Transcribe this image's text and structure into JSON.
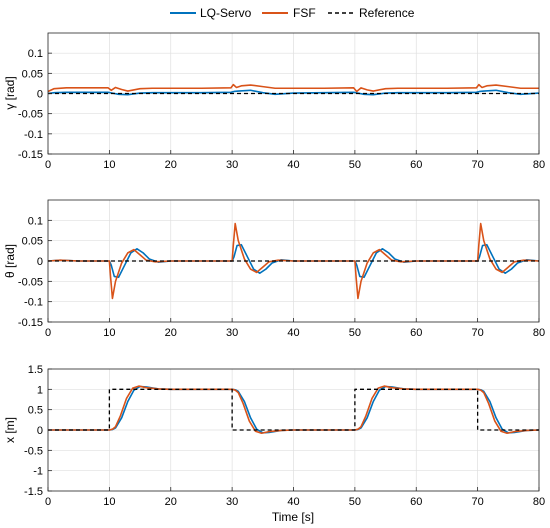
{
  "legend": {
    "entries": [
      {
        "label": "LQ-Servo",
        "color": "#0072BD",
        "dash": "solid"
      },
      {
        "label": "FSF",
        "color": "#D95319",
        "dash": "solid"
      },
      {
        "label": "Reference",
        "color": "#000000",
        "dash": "dashed"
      }
    ]
  },
  "chart_data": [
    {
      "type": "line",
      "ylabel": "γ [rad]",
      "xlabel": "",
      "xlim": [
        0,
        80
      ],
      "ylim": [
        -0.15,
        0.15
      ],
      "xticks": [
        0,
        10,
        20,
        30,
        40,
        50,
        60,
        70,
        80
      ],
      "yticks": [
        -0.15,
        -0.1,
        -0.05,
        0,
        0.05,
        0.1
      ],
      "ytick_labels": [
        "-0.15",
        "-0.1",
        "-0.05",
        "0",
        "0.05",
        "0.1"
      ],
      "grid": true,
      "series": [
        {
          "name": "LQ-Servo",
          "color": "#0072BD",
          "x": [
            0,
            1,
            3,
            6,
            9.8,
            10.5,
            11.5,
            13,
            15,
            17,
            20,
            25,
            29.8,
            30.3,
            31,
            33,
            35,
            37,
            40,
            45,
            49.8,
            50.5,
            51.5,
            53,
            55,
            57,
            60,
            65,
            69.8,
            70.3,
            71,
            73,
            75,
            77,
            80
          ],
          "y": [
            0,
            0.002,
            0.003,
            0.003,
            0.003,
            0.001,
            -0.002,
            -0.003,
            0.001,
            0.002,
            0.002,
            0.002,
            0.003,
            0.005,
            0.006,
            0.008,
            0.002,
            -0.002,
            0.001,
            0.002,
            0.003,
            0.001,
            -0.002,
            -0.003,
            0.001,
            0.002,
            0.002,
            0.002,
            0.003,
            0.005,
            0.006,
            0.008,
            0.002,
            -0.002,
            0.001
          ]
        },
        {
          "name": "FSF",
          "color": "#D95319",
          "x": [
            0,
            1,
            3,
            6,
            9.8,
            10.3,
            11,
            12,
            13,
            15,
            17,
            20,
            25,
            29.8,
            30.2,
            30.7,
            31.5,
            33,
            35,
            37,
            40,
            45,
            49.8,
            50.3,
            51,
            52,
            53,
            55,
            57,
            60,
            65,
            69.8,
            70.2,
            70.7,
            71.5,
            73,
            75,
            77,
            80
          ],
          "y": [
            0.005,
            0.012,
            0.014,
            0.014,
            0.014,
            0.008,
            0.015,
            0.01,
            0.006,
            0.012,
            0.013,
            0.013,
            0.013,
            0.014,
            0.022,
            0.015,
            0.019,
            0.021,
            0.017,
            0.013,
            0.013,
            0.013,
            0.014,
            0.005,
            0.014,
            0.009,
            0.006,
            0.012,
            0.013,
            0.013,
            0.013,
            0.014,
            0.022,
            0.015,
            0.019,
            0.021,
            0.017,
            0.013,
            0.013
          ]
        },
        {
          "name": "Reference",
          "color": "#000000",
          "dash": "dashed",
          "x": [
            0,
            80
          ],
          "y": [
            0,
            0
          ]
        }
      ]
    },
    {
      "type": "line",
      "ylabel": "θ [rad]",
      "xlabel": "",
      "xlim": [
        0,
        80
      ],
      "ylim": [
        -0.15,
        0.15
      ],
      "xticks": [
        0,
        10,
        20,
        30,
        40,
        50,
        60,
        70,
        80
      ],
      "yticks": [
        -0.15,
        -0.1,
        -0.05,
        0,
        0.05,
        0.1
      ],
      "ytick_labels": [
        "-0.15",
        "-0.1",
        "-0.05",
        "0",
        "0.05",
        "0.1"
      ],
      "grid": true,
      "series": [
        {
          "name": "LQ-Servo",
          "color": "#0072BD",
          "x": [
            0,
            2,
            5,
            10,
            10.3,
            10.8,
            11.5,
            12.5,
            13.5,
            14.5,
            15.5,
            16.5,
            18,
            20,
            25,
            30,
            30.3,
            30.8,
            31.5,
            32.5,
            33.5,
            34.5,
            35.5,
            36.5,
            38,
            40,
            45,
            50,
            50.3,
            50.8,
            51.5,
            52.5,
            53.5,
            54.5,
            55.5,
            56.5,
            58,
            60,
            65,
            70,
            70.3,
            70.8,
            71.5,
            72.5,
            73.5,
            74.5,
            75.5,
            76.5,
            78,
            80
          ],
          "y": [
            0,
            0.002,
            0,
            0,
            -0.01,
            -0.038,
            -0.04,
            -0.01,
            0.02,
            0.03,
            0.02,
            0.005,
            -0.003,
            0,
            0,
            0,
            0.01,
            0.038,
            0.04,
            0.01,
            -0.02,
            -0.03,
            -0.02,
            -0.005,
            0.003,
            0,
            0,
            0,
            -0.01,
            -0.038,
            -0.04,
            -0.01,
            0.02,
            0.03,
            0.02,
            0.005,
            -0.003,
            0,
            0,
            0,
            0.01,
            0.038,
            0.04,
            0.01,
            -0.02,
            -0.03,
            -0.02,
            -0.005,
            0.003,
            0
          ]
        },
        {
          "name": "FSF",
          "color": "#D95319",
          "x": [
            0,
            2,
            5,
            10,
            10.2,
            10.5,
            11,
            12,
            13,
            14,
            15,
            16,
            17.5,
            20,
            25,
            30,
            30.2,
            30.5,
            31,
            32,
            33,
            34,
            35,
            36,
            37.5,
            40,
            45,
            50,
            50.2,
            50.5,
            51,
            52,
            53,
            54,
            55,
            56,
            57.5,
            60,
            65,
            70,
            70.2,
            70.5,
            71,
            72,
            73,
            74,
            75,
            76,
            77.5,
            80
          ],
          "y": [
            0,
            0.002,
            0,
            0,
            -0.04,
            -0.092,
            -0.05,
            -0.005,
            0.02,
            0.028,
            0.015,
            0.002,
            -0.002,
            0,
            0,
            0,
            0.04,
            0.092,
            0.05,
            0.005,
            -0.02,
            -0.028,
            -0.015,
            -0.002,
            0.002,
            0,
            0,
            0,
            -0.04,
            -0.092,
            -0.05,
            -0.005,
            0.02,
            0.028,
            0.015,
            0.002,
            -0.002,
            0,
            0,
            0,
            0.04,
            0.092,
            0.05,
            0.005,
            -0.02,
            -0.028,
            -0.015,
            -0.002,
            0.002,
            0
          ]
        },
        {
          "name": "Reference",
          "color": "#000000",
          "dash": "dashed",
          "x": [
            0,
            80
          ],
          "y": [
            0,
            0
          ]
        }
      ]
    },
    {
      "type": "line",
      "ylabel": "x [m]",
      "xlabel": "Time [s]",
      "xlim": [
        0,
        80
      ],
      "ylim": [
        -1.5,
        1.5
      ],
      "xticks": [
        0,
        10,
        20,
        30,
        40,
        50,
        60,
        70,
        80
      ],
      "yticks": [
        -1.5,
        -1,
        -0.5,
        0,
        0.5,
        1,
        1.5
      ],
      "ytick_labels": [
        "-1.5",
        "-1",
        "-0.5",
        "0",
        "0.5",
        "1",
        "1.5"
      ],
      "grid": true,
      "series": [
        {
          "name": "LQ-Servo",
          "color": "#0072BD",
          "x": [
            0,
            10,
            10.5,
            11,
            12,
            13,
            14,
            15,
            16,
            18,
            20,
            25,
            30,
            30.5,
            31,
            32,
            33,
            34,
            35,
            36,
            38,
            40,
            45,
            50,
            50.5,
            51,
            52,
            53,
            54,
            55,
            56,
            58,
            60,
            65,
            70,
            70.5,
            71,
            72,
            73,
            74,
            75,
            76,
            78,
            80
          ],
          "y": [
            0,
            0,
            0.01,
            0.05,
            0.3,
            0.7,
            0.98,
            1.07,
            1.06,
            1.01,
            1,
            1,
            1,
            0.99,
            0.95,
            0.7,
            0.3,
            0.02,
            -0.07,
            -0.06,
            -0.01,
            0,
            0,
            0,
            0.01,
            0.05,
            0.3,
            0.7,
            0.98,
            1.07,
            1.06,
            1.01,
            1,
            1,
            1,
            0.99,
            0.95,
            0.7,
            0.3,
            0.02,
            -0.07,
            -0.06,
            -0.01,
            0
          ]
        },
        {
          "name": "FSF",
          "color": "#D95319",
          "x": [
            0,
            10,
            10.5,
            11,
            11.8,
            12.8,
            13.8,
            14.8,
            16,
            18,
            20,
            25,
            30,
            30.5,
            31,
            31.8,
            32.8,
            33.8,
            34.8,
            36,
            38,
            40,
            45,
            50,
            50.5,
            51,
            51.8,
            52.8,
            53.8,
            54.8,
            56,
            58,
            60,
            65,
            70,
            70.5,
            71,
            71.8,
            72.8,
            73.8,
            74.8,
            76,
            78,
            80
          ],
          "y": [
            0,
            0,
            0.02,
            0.08,
            0.35,
            0.78,
            1.03,
            1.08,
            1.04,
            1.01,
            1,
            1,
            1,
            0.98,
            0.92,
            0.65,
            0.22,
            -0.03,
            -0.08,
            -0.04,
            -0.01,
            0,
            0,
            0,
            0.02,
            0.08,
            0.35,
            0.78,
            1.03,
            1.08,
            1.04,
            1.01,
            1,
            1,
            1,
            0.98,
            0.92,
            0.65,
            0.22,
            -0.03,
            -0.08,
            -0.04,
            -0.01,
            0
          ]
        },
        {
          "name": "Reference",
          "color": "#000000",
          "dash": "dashed",
          "x": [
            0,
            10,
            10,
            30,
            30,
            50,
            50,
            70,
            70,
            80
          ],
          "y": [
            0,
            0,
            1,
            1,
            0,
            0,
            1,
            1,
            0,
            0
          ]
        }
      ]
    }
  ]
}
